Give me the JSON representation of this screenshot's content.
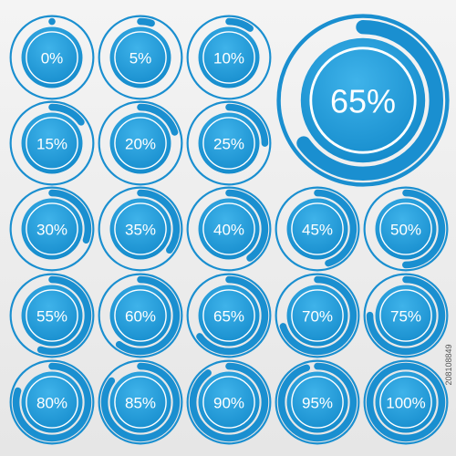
{
  "items": [
    {
      "value": 0,
      "label": "0%"
    },
    {
      "value": 5,
      "label": "5%"
    },
    {
      "value": 10,
      "label": "10%"
    },
    {
      "value": 15,
      "label": "15%"
    },
    {
      "value": 20,
      "label": "20%"
    },
    {
      "value": 25,
      "label": "25%"
    },
    {
      "value": 30,
      "label": "30%"
    },
    {
      "value": 35,
      "label": "35%"
    },
    {
      "value": 40,
      "label": "40%"
    },
    {
      "value": 45,
      "label": "45%"
    },
    {
      "value": 50,
      "label": "50%"
    },
    {
      "value": 55,
      "label": "55%"
    },
    {
      "value": 60,
      "label": "60%"
    },
    {
      "value": 65,
      "label": "65%"
    },
    {
      "value": 70,
      "label": "70%"
    },
    {
      "value": 75,
      "label": "75%"
    },
    {
      "value": 80,
      "label": "80%"
    },
    {
      "value": 85,
      "label": "85%"
    },
    {
      "value": 90,
      "label": "90%"
    },
    {
      "value": 95,
      "label": "95%"
    },
    {
      "value": 100,
      "label": "100%"
    }
  ],
  "featured": {
    "value": 65,
    "label": "65%"
  },
  "watermark": "208108849"
}
